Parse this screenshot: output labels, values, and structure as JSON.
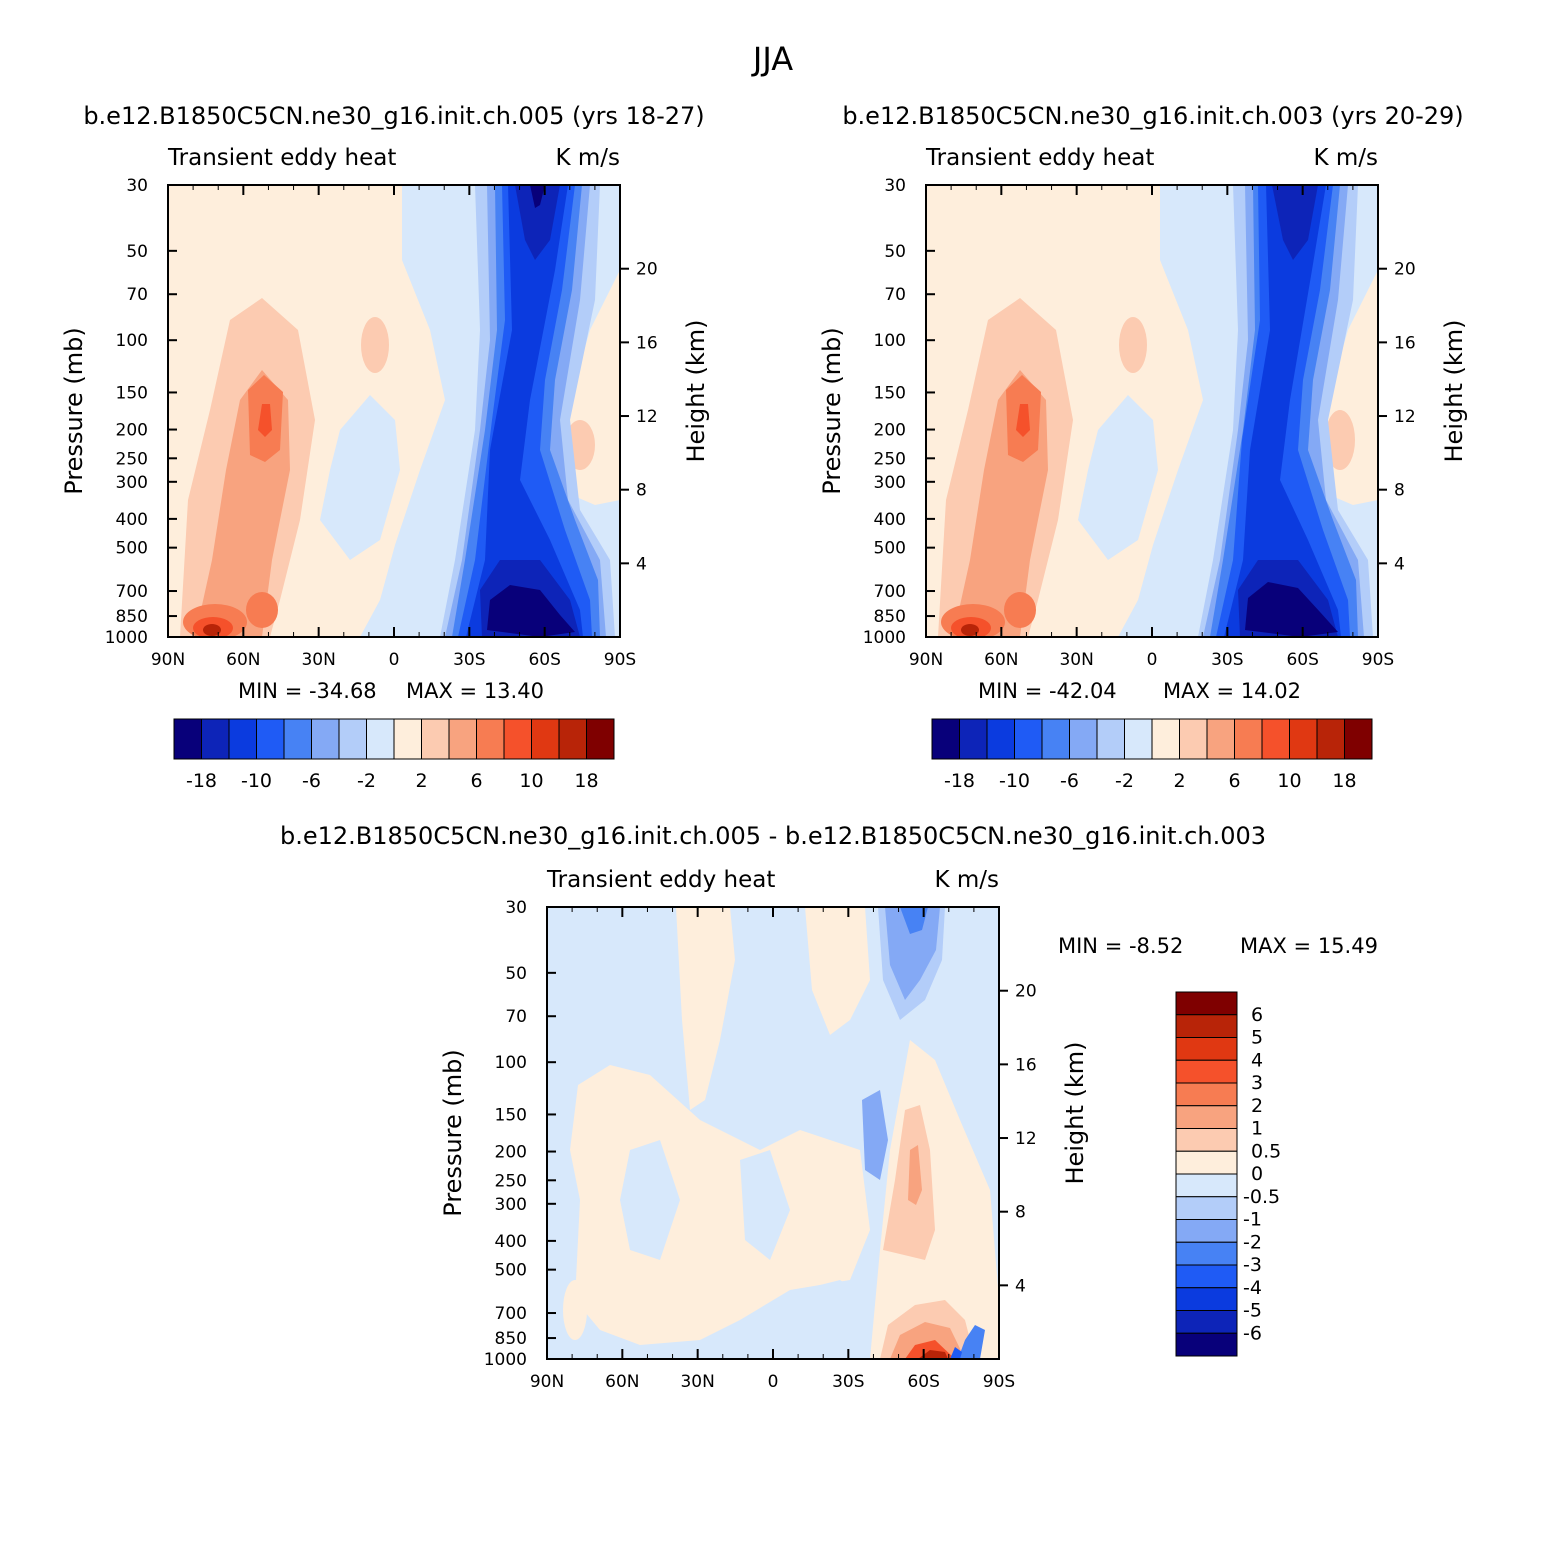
{
  "figure": {
    "season_title": "JJA"
  },
  "palette": {
    "full": [
      "#08007a",
      "#0d24b8",
      "#0b3bdf",
      "#1f5bf5",
      "#4782f4",
      "#84a9f5",
      "#b3cdf9",
      "#d7e8fb",
      "#feeedc",
      "#fccbb1",
      "#f8a37f",
      "#f77c52",
      "#f5512b",
      "#e03812",
      "#b82408",
      "#7f0000"
    ],
    "diff": [
      "#08007a",
      "#0d24b8",
      "#0b3bdf",
      "#1f5bf5",
      "#4782f4",
      "#84a9f5",
      "#b3cdf9",
      "#d7e8fb",
      "#feeedc",
      "#fccbb1",
      "#f8a37f",
      "#f77c52",
      "#f5512b",
      "#e03812",
      "#b82408",
      "#7f0000"
    ]
  },
  "axes": {
    "ylabel": "Pressure (mb)",
    "y2label": "Height (km)",
    "pressure_ticks": [
      "30",
      "50",
      "70",
      "100",
      "150",
      "200",
      "250",
      "300",
      "400",
      "500",
      "700",
      "850",
      "1000"
    ],
    "height_ticks": [
      "20",
      "16",
      "12",
      "8",
      "4"
    ],
    "lat_ticks": [
      "90N",
      "60N",
      "30N",
      "0",
      "30S",
      "60S",
      "90S"
    ]
  },
  "chart_data": [
    {
      "type": "heatmap",
      "title": "b.e12.B1850C5CN.ne30_g16.init.ch.005 (yrs 18-27)",
      "left_label": "Transient eddy heat",
      "right_label": "K m/s",
      "x_range": [
        "90N",
        "90S"
      ],
      "y_range_mb": [
        1000,
        30
      ],
      "min_label": "MIN = -34.68",
      "max_label": "MAX =  13.40",
      "colorbar_ticks": [
        "-18",
        "-10",
        "-6",
        "-2",
        "2",
        "6",
        "10",
        "18"
      ]
    },
    {
      "type": "heatmap",
      "title": "b.e12.B1850C5CN.ne30_g16.init.ch.003 (yrs 20-29)",
      "left_label": "Transient eddy heat",
      "right_label": "K m/s",
      "x_range": [
        "90N",
        "90S"
      ],
      "y_range_mb": [
        1000,
        30
      ],
      "min_label": "MIN = -42.04",
      "max_label": "MAX =  14.02",
      "colorbar_ticks": [
        "-18",
        "-10",
        "-6",
        "-2",
        "2",
        "6",
        "10",
        "18"
      ]
    },
    {
      "type": "heatmap",
      "title": "b.e12.B1850C5CN.ne30_g16.init.ch.005 - b.e12.B1850C5CN.ne30_g16.init.ch.003",
      "left_label": "Transient eddy heat",
      "right_label": "K m/s",
      "x_range": [
        "90N",
        "90S"
      ],
      "y_range_mb": [
        1000,
        30
      ],
      "min_label": "MIN =   -8.52",
      "max_label": "MAX =   15.49",
      "colorbar_ticks": [
        "6",
        "5",
        "4",
        "3",
        "2",
        "1",
        "0.5",
        "0",
        "-0.5",
        "-1",
        "-2",
        "-3",
        "-4",
        "-5",
        "-6"
      ]
    }
  ]
}
